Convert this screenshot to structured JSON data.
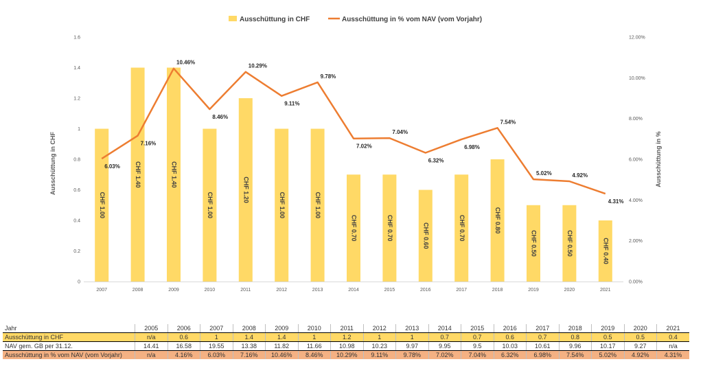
{
  "chart_data": {
    "type": "bar+line",
    "categories": [
      "2007",
      "2008",
      "2009",
      "2010",
      "2011",
      "2012",
      "2013",
      "2014",
      "2015",
      "2016",
      "2017",
      "2018",
      "2019",
      "2020",
      "2021"
    ],
    "series": [
      {
        "name": "Ausschüttung in CHF",
        "type": "bar",
        "axis": "left",
        "color": "#ffd966",
        "values": [
          1.0,
          1.4,
          1.4,
          1.0,
          1.2,
          1.0,
          1.0,
          0.7,
          0.7,
          0.6,
          0.7,
          0.8,
          0.5,
          0.5,
          0.4
        ],
        "labels": [
          "CHF 1.00",
          "CHF 1.40",
          "CHF 1.40",
          "CHF 1.00",
          "CHF 1.20",
          "CHF 1.00",
          "CHF 1.00",
          "CHF 0.70",
          "CHF 0.70",
          "CHF 0.60",
          "CHF 0.70",
          "CHF 0.80",
          "CHF 0.50",
          "CHF 0.50",
          "CHF 0.40"
        ]
      },
      {
        "name": "Ausschüttung in % vom NAV (vom Vorjahr)",
        "type": "line",
        "axis": "right",
        "color": "#ed7d31",
        "values": [
          6.03,
          7.16,
          10.46,
          8.46,
          10.29,
          9.11,
          9.78,
          7.02,
          7.04,
          6.32,
          6.98,
          7.54,
          5.02,
          4.92,
          4.31
        ],
        "labels": [
          "6.03%",
          "7.16%",
          "10.46%",
          "8.46%",
          "10.29%",
          "9.11%",
          "9.78%",
          "7.02%",
          "7.04%",
          "6.32%",
          "6.98%",
          "7.54%",
          "5.02%",
          "4.92%",
          "4.31%"
        ]
      }
    ],
    "ylabel": "Ausschüttung in CHF",
    "y2label": "Ausschüttung in %",
    "ylim": [
      0,
      1.6
    ],
    "y_ticks": [
      "0",
      "0.2",
      "0.4",
      "0.6",
      "0.8",
      "1",
      "1.2",
      "1.4",
      "1.6"
    ],
    "y2lim": [
      0,
      12
    ],
    "y2_ticks": [
      "0.00%",
      "2.00%",
      "4.00%",
      "6.00%",
      "8.00%",
      "10.00%",
      "12.00%"
    ],
    "grid": false,
    "legend": "top-center"
  },
  "table": {
    "years": [
      "Jahr",
      "2005",
      "2006",
      "2007",
      "2008",
      "2009",
      "2010",
      "2011",
      "2012",
      "2013",
      "2014",
      "2015",
      "2016",
      "2017",
      "2018",
      "2019",
      "2020",
      "2021"
    ],
    "rows": [
      {
        "label": "Ausschüttung in CHF",
        "values": [
          "n/a",
          "0.6",
          "1",
          "1.4",
          "1.4",
          "1",
          "1.2",
          "1",
          "1",
          "0.7",
          "0.7",
          "0.6",
          "0.7",
          "0.8",
          "0.5",
          "0.5",
          "0.4"
        ]
      },
      {
        "label": "NAV gem. GB per 31.12.",
        "values": [
          "14.41",
          "16.58",
          "19.55",
          "13.38",
          "11.82",
          "11.66",
          "10.98",
          "10.23",
          "9.97",
          "9.95",
          "9.5",
          "10.03",
          "10.61",
          "9.96",
          "10.17",
          "9.27",
          "n/a"
        ]
      },
      {
        "label": "Ausschüttung in % vom NAV (vom Vorjahr)",
        "values": [
          "n/a",
          "4.16%",
          "6.03%",
          "7.16%",
          "10.46%",
          "8.46%",
          "10.29%",
          "9.11%",
          "9.78%",
          "7.02%",
          "7.04%",
          "6.32%",
          "6.98%",
          "7.54%",
          "5.02%",
          "4.92%",
          "4.31%"
        ]
      }
    ]
  }
}
